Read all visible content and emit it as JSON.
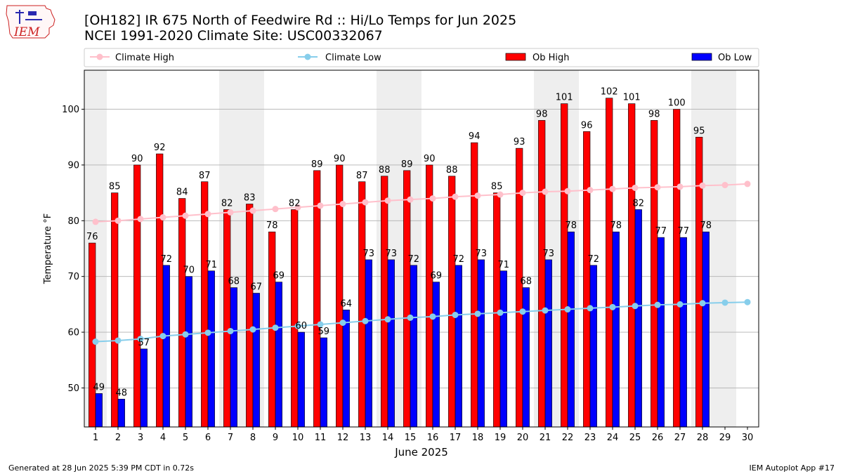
{
  "header": {
    "title_line1": "[OH182] IR 675 North of Feedwire Rd :: Hi/Lo Temps for Jun 2025",
    "title_line2": "NCEI 1991-2020 Climate Site: USC00332067",
    "logo_text": "IEM"
  },
  "footer": {
    "generated": "Generated at 28 Jun 2025 5:39 PM CDT in 0.72s",
    "app": "IEM Autoplot App #17"
  },
  "colors": {
    "ob_high": "#ff0000",
    "ob_low": "#0000ff",
    "climate_high": "#ffc0cb",
    "climate_low": "#87ceeb",
    "weekend_band": "#eeeeee",
    "grid": "#b0b0b0"
  },
  "chart_data": {
    "type": "bar",
    "xlabel": "June 2025",
    "ylabel": "Temperature °F",
    "ylim": [
      43,
      107
    ],
    "yticks": [
      50,
      60,
      70,
      80,
      90,
      100
    ],
    "grid": "horizontal",
    "legend_placement": "top",
    "categories": [
      1,
      2,
      3,
      4,
      5,
      6,
      7,
      8,
      9,
      10,
      11,
      12,
      13,
      14,
      15,
      16,
      17,
      18,
      19,
      20,
      21,
      22,
      23,
      24,
      25,
      26,
      27,
      28,
      29,
      30
    ],
    "weekend_days": [
      1,
      7,
      8,
      14,
      15,
      21,
      22,
      28,
      29
    ],
    "series": [
      {
        "name": "Climate High",
        "kind": "line",
        "values": [
          79.8,
          80.0,
          80.3,
          80.6,
          80.9,
          81.2,
          81.5,
          81.8,
          82.1,
          82.4,
          82.7,
          83.0,
          83.3,
          83.6,
          83.8,
          84.0,
          84.3,
          84.5,
          84.7,
          85.0,
          85.2,
          85.3,
          85.5,
          85.7,
          85.9,
          86.0,
          86.1,
          86.3,
          86.4,
          86.6
        ]
      },
      {
        "name": "Climate Low",
        "kind": "line",
        "values": [
          58.3,
          58.5,
          58.8,
          59.3,
          59.6,
          59.9,
          60.2,
          60.5,
          60.8,
          61.1,
          61.4,
          61.7,
          62.0,
          62.3,
          62.6,
          62.8,
          63.1,
          63.3,
          63.5,
          63.7,
          63.9,
          64.1,
          64.3,
          64.5,
          64.7,
          64.9,
          65.0,
          65.2,
          65.3,
          65.4
        ]
      },
      {
        "name": "Ob High",
        "kind": "bar",
        "values": [
          76,
          85,
          90,
          92,
          84,
          87,
          82,
          83,
          78,
          82,
          89,
          90,
          87,
          88,
          89,
          90,
          88,
          94,
          85,
          93,
          98,
          101,
          96,
          102,
          101,
          98,
          100,
          95,
          null,
          null
        ]
      },
      {
        "name": "Ob Low",
        "kind": "bar",
        "values": [
          49,
          48,
          57,
          72,
          70,
          71,
          68,
          67,
          69,
          60,
          59,
          64,
          73,
          73,
          72,
          69,
          72,
          73,
          71,
          68,
          73,
          78,
          72,
          78,
          82,
          77,
          77,
          78,
          null,
          null
        ]
      }
    ]
  }
}
